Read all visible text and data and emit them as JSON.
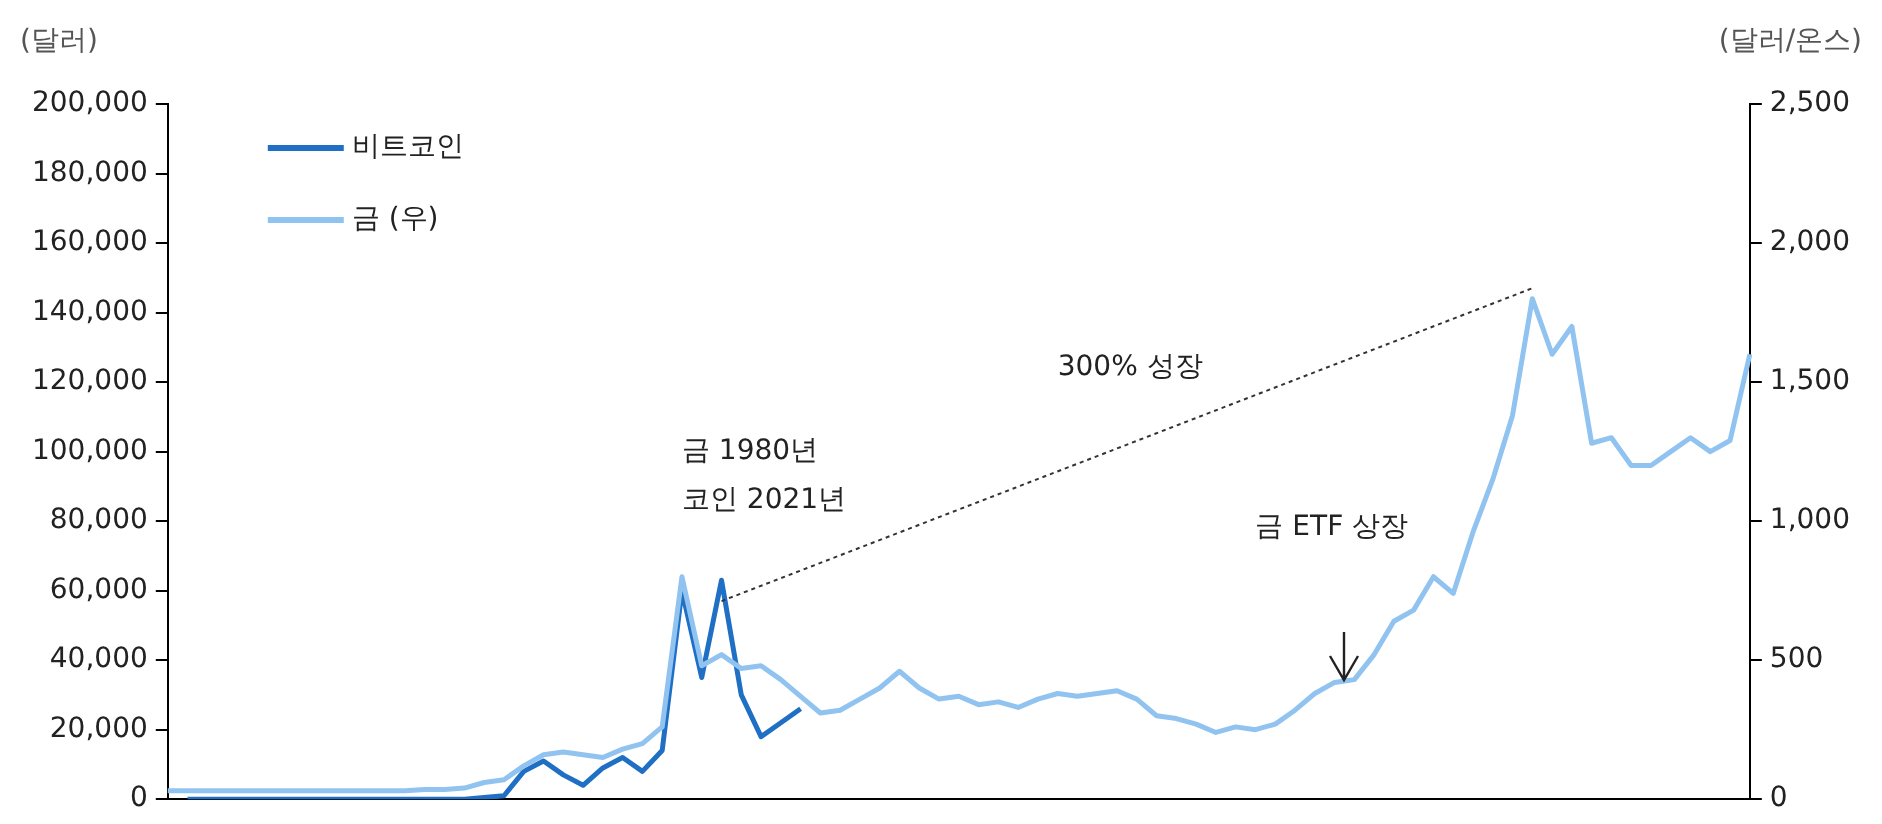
{
  "chart_data": {
    "type": "line",
    "ylabel": "(달러)",
    "y2label": "(달러/온스)",
    "categories": [
      null,
      null,
      null,
      null,
      null,
      null,
      null,
      null,
      null,
      null,
      null,
      null,
      null,
      null,
      null,
      null,
      null,
      null,
      null,
      null,
      null,
      null,
      null,
      null,
      null,
      null,
      null,
      null,
      null,
      null,
      null,
      null,
      null,
      null,
      null,
      null,
      null,
      null,
      null,
      null,
      null,
      null,
      null,
      null,
      null,
      null,
      null,
      null,
      null,
      null,
      null,
      null,
      null,
      null,
      null,
      null,
      null,
      null,
      null,
      null,
      null,
      null,
      null,
      null,
      null,
      null,
      null,
      null,
      null,
      null,
      null,
      null,
      null,
      null,
      null,
      null,
      null,
      null,
      null,
      null,
      null
    ],
    "series": [
      {
        "name": "비트코인",
        "color": "#1f6fc5",
        "values": [
          null,
          0,
          0,
          0,
          0,
          0,
          0,
          0,
          0,
          0,
          0,
          0,
          0,
          0,
          0,
          0,
          500,
          1000,
          8000,
          11000,
          7000,
          4000,
          9000,
          12000,
          8000,
          14000,
          60000,
          35000,
          63000,
          30000,
          18000,
          22000,
          26000,
          null,
          null,
          null,
          null,
          null,
          null,
          null,
          null,
          null,
          null,
          null,
          null,
          null,
          null,
          null,
          null,
          null,
          null,
          null,
          null,
          null,
          null,
          null,
          null,
          null,
          null,
          null,
          null,
          null,
          null,
          null,
          null,
          null,
          null,
          null,
          null,
          null,
          null,
          null,
          null,
          null,
          null,
          null,
          null,
          null,
          null,
          null,
          null
        ]
      },
      {
        "name": "금 (우)",
        "color": "#91c3f0",
        "axis": "y2",
        "values": [
          30,
          30,
          30,
          30,
          30,
          30,
          30,
          30,
          30,
          30,
          30,
          30,
          30,
          35,
          35,
          40,
          60,
          70,
          120,
          160,
          170,
          160,
          150,
          180,
          200,
          260,
          800,
          480,
          520,
          470,
          480,
          430,
          370,
          310,
          320,
          360,
          400,
          460,
          400,
          360,
          370,
          340,
          350,
          330,
          360,
          380,
          370,
          380,
          390,
          360,
          300,
          290,
          270,
          240,
          260,
          250,
          270,
          320,
          380,
          420,
          430,
          520,
          640,
          680,
          800,
          740,
          960,
          1150,
          1380,
          1800,
          1600,
          1700,
          1280,
          1300,
          1200,
          1200,
          1250,
          1300,
          1250,
          1290,
          1600
        ]
      },
      {
        "color": "#333333",
        "line_style": "dotted",
        "values": [
          null,
          null,
          null,
          null,
          null,
          null,
          null,
          null,
          null,
          null,
          null,
          null,
          null,
          null,
          null,
          null,
          null,
          null,
          null,
          null,
          null,
          null,
          null,
          null,
          null,
          null,
          null,
          null,
          57000,
          null,
          null,
          null,
          null,
          null,
          null,
          null,
          null,
          null,
          null,
          null,
          null,
          null,
          null,
          null,
          null,
          null,
          null,
          null,
          null,
          null,
          null,
          null,
          null,
          null,
          null,
          null,
          null,
          null,
          null,
          null,
          null,
          null,
          null,
          null,
          null,
          null,
          null,
          null,
          null,
          147000,
          null,
          null,
          null,
          null,
          null,
          null,
          null,
          null,
          null,
          null,
          null
        ]
      }
    ],
    "ylim": [
      0,
      200000
    ],
    "yticks": [
      0,
      {
        "value": 20000,
        "label": "20,000"
      },
      {
        "value": 40000,
        "label": "40,000"
      },
      {
        "value": 60000,
        "label": "60,000"
      },
      {
        "value": 80000,
        "label": "80,000"
      },
      {
        "value": 100000,
        "label": "100,000"
      },
      {
        "value": 120000,
        "label": "120,000"
      },
      {
        "value": 140000,
        "label": "140,000"
      },
      {
        "value": 160000,
        "label": "160,000"
      },
      {
        "value": 180000,
        "label": "180,000"
      },
      {
        "value": 200000,
        "label": "200,000"
      }
    ],
    "y2lim": [
      0,
      2500
    ],
    "y2ticks": [
      0,
      500,
      {
        "value": 1000,
        "label": "1,000"
      },
      {
        "value": 1500,
        "label": "1,500"
      },
      {
        "value": 2000,
        "label": "2,000"
      },
      {
        "value": 2500,
        "label": "2,500"
      }
    ],
    "annotations": [
      "금 1980년",
      "코인 2021년",
      "300% 성장",
      "금 ETF 상장"
    ],
    "legend": "top left",
    "grid": false,
    "marker": "none",
    "line_style": "solid"
  }
}
